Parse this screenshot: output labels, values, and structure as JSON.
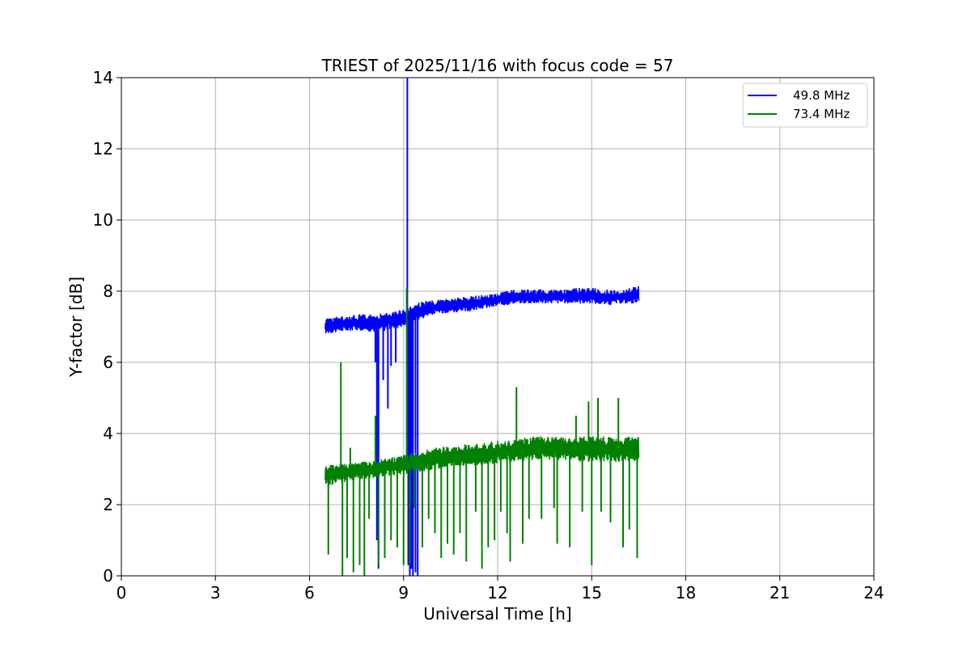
{
  "chart_data": {
    "type": "line",
    "title": "TRIEST of 2025/11/16 with focus code = 57",
    "xlabel": "Universal Time [h]",
    "ylabel": "Y-factor [dB]",
    "xlim": [
      0,
      24
    ],
    "ylim": [
      0,
      14
    ],
    "xticks": [
      "0",
      "3",
      "6",
      "9",
      "12",
      "15",
      "18",
      "21",
      "24"
    ],
    "yticks": [
      "0",
      "2",
      "4",
      "6",
      "8",
      "10",
      "12",
      "14"
    ],
    "grid": true,
    "legend_position": "top-right",
    "series": [
      {
        "name": "49.8 MHz",
        "color": "#0000ff",
        "band": {
          "x": [
            6.5,
            7.0,
            7.5,
            8.0,
            8.5,
            9.0,
            9.5,
            10.0,
            10.5,
            11.0,
            11.5,
            12.0,
            12.5,
            13.0,
            13.5,
            14.0,
            14.5,
            15.0,
            15.5,
            16.0,
            16.5
          ],
          "low": [
            6.8,
            6.85,
            6.9,
            6.85,
            6.9,
            7.0,
            7.2,
            7.35,
            7.4,
            7.4,
            7.5,
            7.55,
            7.65,
            7.65,
            7.65,
            7.65,
            7.65,
            7.65,
            7.6,
            7.65,
            7.65
          ],
          "high": [
            7.25,
            7.3,
            7.35,
            7.35,
            7.4,
            7.5,
            7.7,
            7.75,
            7.8,
            7.85,
            7.9,
            7.95,
            8.05,
            8.05,
            8.05,
            8.05,
            8.1,
            8.1,
            8.05,
            8.05,
            8.15
          ]
        },
        "spikes": [
          {
            "x": 8.1,
            "y": 6.0
          },
          {
            "x": 8.15,
            "y": 1.0
          },
          {
            "x": 8.2,
            "y": 0.2
          },
          {
            "x": 8.35,
            "y": 5.5
          },
          {
            "x": 8.5,
            "y": 4.7
          },
          {
            "x": 8.6,
            "y": 5.9
          },
          {
            "x": 8.75,
            "y": 6.0
          },
          {
            "x": 9.12,
            "y": 14.0
          },
          {
            "x": 9.15,
            "y": 0.3
          },
          {
            "x": 9.2,
            "y": 0.0
          },
          {
            "x": 9.25,
            "y": 0.2
          },
          {
            "x": 9.3,
            "y": 0.0
          },
          {
            "x": 9.38,
            "y": 0.1
          },
          {
            "x": 9.45,
            "y": 0.0
          }
        ]
      },
      {
        "name": "73.4 MHz",
        "color": "#008000",
        "band": {
          "x": [
            6.5,
            7.0,
            7.5,
            8.0,
            8.5,
            9.0,
            9.5,
            10.0,
            10.5,
            11.0,
            11.5,
            12.0,
            12.5,
            13.0,
            13.5,
            14.0,
            14.5,
            15.0,
            15.5,
            16.0,
            16.5
          ],
          "low": [
            2.5,
            2.6,
            2.7,
            2.75,
            2.8,
            2.85,
            2.9,
            3.0,
            3.05,
            3.1,
            3.1,
            3.15,
            3.2,
            3.25,
            3.25,
            3.25,
            3.2,
            3.2,
            3.2,
            3.2,
            3.2
          ],
          "high": [
            3.1,
            3.15,
            3.2,
            3.25,
            3.3,
            3.4,
            3.5,
            3.6,
            3.65,
            3.7,
            3.75,
            3.8,
            3.85,
            3.9,
            3.95,
            3.9,
            3.9,
            3.95,
            3.9,
            3.9,
            3.95
          ]
        },
        "spikes": [
          {
            "x": 6.6,
            "y": 0.6
          },
          {
            "x": 7.0,
            "y": 6.0
          },
          {
            "x": 7.05,
            "y": 0.0
          },
          {
            "x": 7.2,
            "y": 0.5
          },
          {
            "x": 7.3,
            "y": 3.6
          },
          {
            "x": 7.4,
            "y": 0.1
          },
          {
            "x": 7.6,
            "y": 0.3
          },
          {
            "x": 7.75,
            "y": 0.0
          },
          {
            "x": 7.9,
            "y": 1.6
          },
          {
            "x": 8.1,
            "y": 4.5
          },
          {
            "x": 8.2,
            "y": 0.3
          },
          {
            "x": 8.4,
            "y": 0.5
          },
          {
            "x": 8.6,
            "y": 1.0
          },
          {
            "x": 8.8,
            "y": 0.8
          },
          {
            "x": 9.0,
            "y": 0.3
          },
          {
            "x": 9.1,
            "y": 8.1
          },
          {
            "x": 9.2,
            "y": 0.3
          },
          {
            "x": 9.35,
            "y": 1.9
          },
          {
            "x": 9.6,
            "y": 0.8
          },
          {
            "x": 9.8,
            "y": 1.6
          },
          {
            "x": 10.0,
            "y": 1.2
          },
          {
            "x": 10.2,
            "y": 0.5
          },
          {
            "x": 10.4,
            "y": 0.9
          },
          {
            "x": 10.6,
            "y": 0.6
          },
          {
            "x": 10.8,
            "y": 1.2
          },
          {
            "x": 11.0,
            "y": 0.4
          },
          {
            "x": 11.3,
            "y": 1.8
          },
          {
            "x": 11.5,
            "y": 0.2
          },
          {
            "x": 11.7,
            "y": 0.8
          },
          {
            "x": 11.9,
            "y": 1.0
          },
          {
            "x": 12.1,
            "y": 1.8
          },
          {
            "x": 12.3,
            "y": 1.2
          },
          {
            "x": 12.4,
            "y": 0.4
          },
          {
            "x": 12.6,
            "y": 5.3
          },
          {
            "x": 12.8,
            "y": 0.9
          },
          {
            "x": 13.0,
            "y": 1.6
          },
          {
            "x": 13.4,
            "y": 1.6
          },
          {
            "x": 13.8,
            "y": 1.9
          },
          {
            "x": 13.9,
            "y": 0.9
          },
          {
            "x": 14.3,
            "y": 0.8
          },
          {
            "x": 14.5,
            "y": 4.5
          },
          {
            "x": 14.7,
            "y": 1.8
          },
          {
            "x": 14.9,
            "y": 4.9
          },
          {
            "x": 15.0,
            "y": 0.3
          },
          {
            "x": 15.2,
            "y": 5.0
          },
          {
            "x": 15.3,
            "y": 1.8
          },
          {
            "x": 15.6,
            "y": 1.5
          },
          {
            "x": 15.85,
            "y": 5.0
          },
          {
            "x": 16.0,
            "y": 0.8
          },
          {
            "x": 16.2,
            "y": 1.3
          },
          {
            "x": 16.45,
            "y": 0.5
          },
          {
            "x": 16.48,
            "y": 3.9
          }
        ]
      }
    ]
  }
}
